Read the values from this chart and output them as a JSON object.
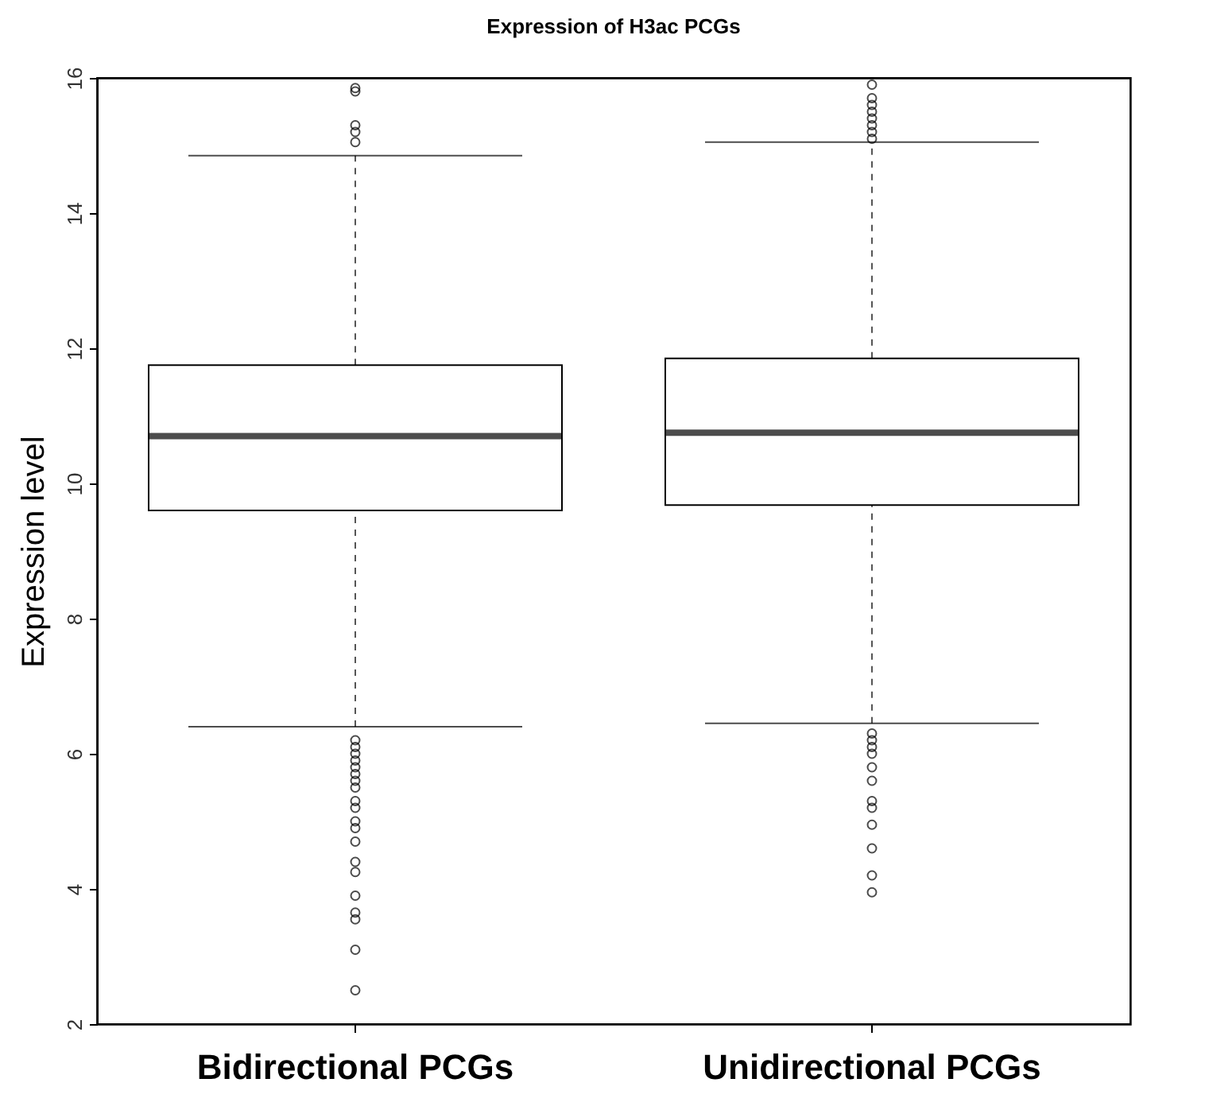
{
  "chart_data": {
    "type": "box",
    "title": "Expression of H3ac PCGs",
    "ylabel": "Expression level",
    "categories": [
      "Bidirectional PCGs",
      "Unidirectional PCGs"
    ],
    "ylim": [
      2,
      16
    ],
    "yticks": [
      2,
      4,
      6,
      8,
      10,
      12,
      14,
      16
    ],
    "grid": false,
    "marker": "circle",
    "boxes": [
      {
        "low": 6.4,
        "q1": 9.6,
        "median": 10.7,
        "q3": 11.75,
        "high": 14.85,
        "outliers": [
          15.85,
          15.8,
          15.3,
          15.2,
          15.05,
          6.2,
          6.1,
          6.0,
          5.9,
          5.8,
          5.7,
          5.6,
          5.5,
          5.3,
          5.2,
          5.0,
          4.9,
          4.7,
          4.4,
          4.25,
          3.9,
          3.65,
          3.55,
          3.1,
          2.5
        ]
      },
      {
        "low": 6.45,
        "q1": 9.68,
        "median": 10.75,
        "q3": 11.85,
        "high": 15.05,
        "outliers": [
          15.1,
          15.2,
          15.3,
          15.4,
          15.5,
          15.6,
          15.7,
          15.9,
          6.3,
          6.2,
          6.1,
          6.0,
          5.8,
          5.6,
          5.3,
          5.2,
          4.95,
          4.6,
          4.2,
          3.95
        ]
      }
    ]
  }
}
